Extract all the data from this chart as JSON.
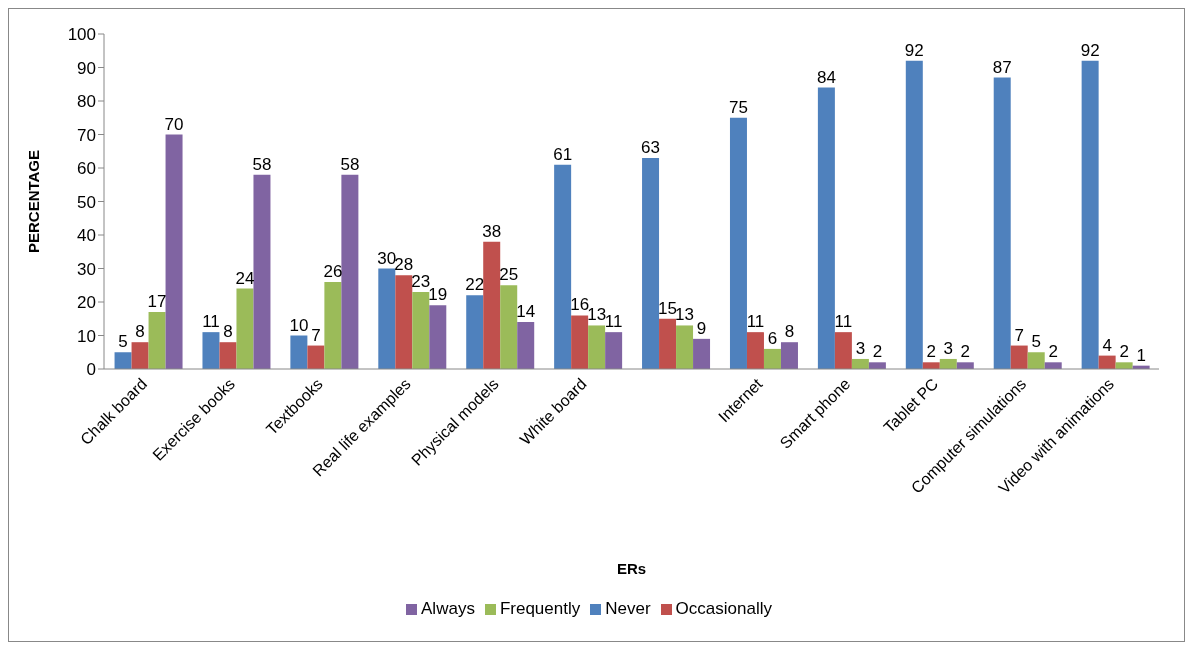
{
  "chart_data": {
    "type": "bar",
    "xlabel": "ERs",
    "ylabel": "PERCENTAGE",
    "categories": [
      "Chalk board",
      "Exercise books",
      "Textbooks",
      "Real life examples",
      "Physical models",
      "White board",
      null,
      "Internet",
      "Smart phone",
      "Tablet PC",
      "Computer simulations",
      "Video with animations"
    ],
    "series": [
      {
        "name": "Never",
        "color": "#4f81bd",
        "values": [
          5,
          11,
          10,
          30,
          22,
          61,
          63,
          75,
          84,
          92,
          87,
          92
        ]
      },
      {
        "name": "Occasionally",
        "color": "#c0504d",
        "values": [
          8,
          8,
          7,
          28,
          38,
          16,
          15,
          11,
          11,
          2,
          7,
          4
        ]
      },
      {
        "name": "Frequently",
        "color": "#9bbb59",
        "values": [
          17,
          24,
          26,
          23,
          25,
          13,
          13,
          6,
          3,
          3,
          5,
          2
        ]
      },
      {
        "name": "Always",
        "color": "#8064a2",
        "values": [
          70,
          58,
          58,
          19,
          14,
          11,
          9,
          8,
          2,
          2,
          2,
          1
        ]
      }
    ],
    "ylim": [
      0,
      100
    ],
    "yticks": [
      0,
      10,
      20,
      30,
      40,
      50,
      60,
      70,
      80,
      90,
      100
    ],
    "data_labels": true,
    "legend": "bottom"
  }
}
